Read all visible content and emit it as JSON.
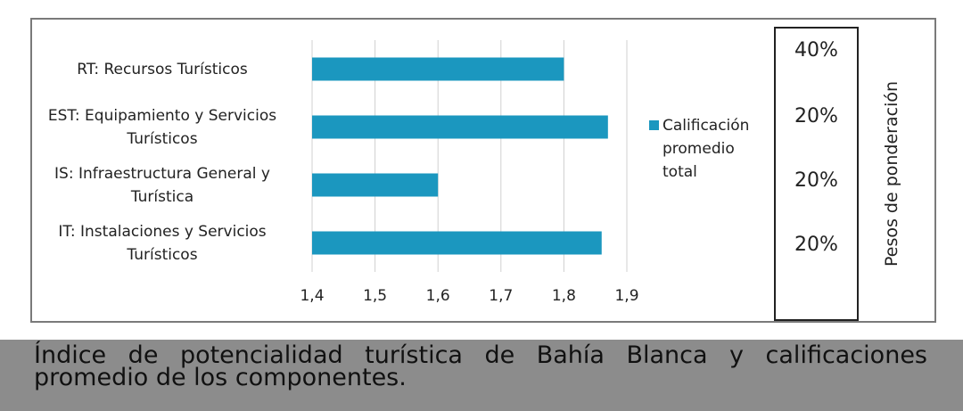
{
  "chart_data": {
    "type": "bar",
    "orientation": "horizontal",
    "categories": [
      "RT: Recursos Turísticos",
      "EST: Equipamiento y Servicios Turísticos",
      "IS: Infraestructura General y Turística",
      "IT: Instalaciones y Servicios Turísticos"
    ],
    "category_lines": [
      [
        "RT: Recursos Turísticos"
      ],
      [
        "EST: Equipamiento y Servicios",
        "Turísticos"
      ],
      [
        "IS: Infraestructura General y",
        "Turística"
      ],
      [
        "IT: Instalaciones y Servicios",
        "Turísticos"
      ]
    ],
    "series": [
      {
        "name": "Calificación promedio total",
        "values": [
          1.8,
          1.87,
          1.6,
          1.86
        ]
      }
    ],
    "xlim": [
      1.4,
      1.9
    ],
    "xticks": [
      "1,4",
      "1,5",
      "1,6",
      "1,7",
      "1,8",
      "1,9"
    ],
    "grid": true,
    "legend_position": "right",
    "legend_lines": [
      "Calificación",
      "promedio",
      "total"
    ],
    "color": "#1b97bf"
  },
  "weights": {
    "title": "Pesos de ponderación",
    "values": [
      "40%",
      "20%",
      "20%",
      "20%"
    ]
  },
  "caption": "Índice de potencialidad turística de Bahía Blanca y calificaciones promedio de los componentes."
}
